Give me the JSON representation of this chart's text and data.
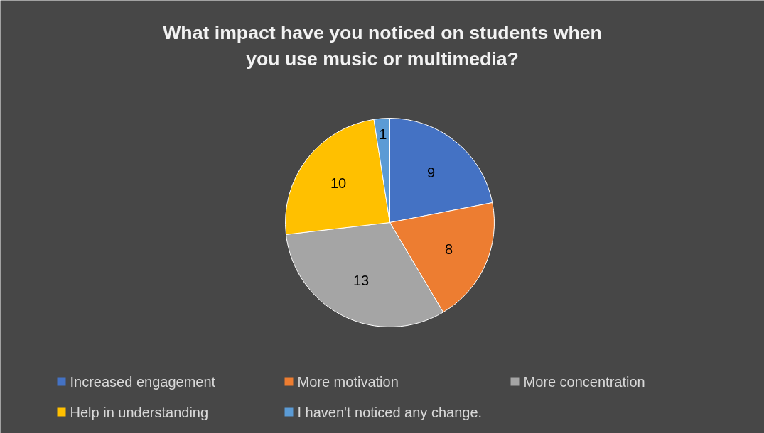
{
  "chart_data": {
    "type": "pie",
    "title": "What impact have you noticed on students when you use music or multimedia?",
    "categories": [
      "Increased engagement",
      "More motivation",
      "More concentration",
      "Help in understanding",
      "I haven't noticed any change."
    ],
    "values": [
      9,
      8,
      13,
      10,
      1
    ],
    "colors": [
      "#4472c4",
      "#ed7d31",
      "#a5a5a5",
      "#ffc000",
      "#5b9bd5"
    ],
    "data_labels": true,
    "legend": "bottom"
  }
}
